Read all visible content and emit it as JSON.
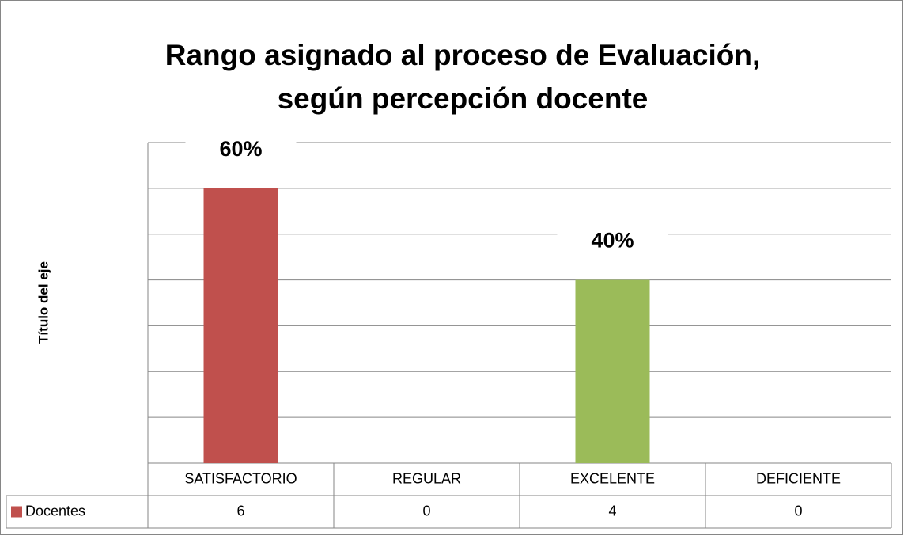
{
  "chart_data": {
    "type": "bar",
    "title": "Rango asignado al proceso de Evaluación,",
    "title_line2": "según percepción docente",
    "y_axis_label": "Título del eje",
    "categories": [
      "SATISFACTORIO",
      "REGULAR",
      "EXCELENTE",
      "DEFICIENTE"
    ],
    "series": [
      {
        "name": "Docentes",
        "color": "#c0504d",
        "values": [
          6,
          0,
          4,
          0
        ]
      }
    ],
    "bar_colors": [
      "#c0504d",
      "#c0504d",
      "#9bbb59",
      "#c0504d"
    ],
    "percent_labels": [
      "60%",
      null,
      "40%",
      null
    ],
    "ylim": [
      0,
      7
    ],
    "yticks": [
      0,
      1,
      2,
      3,
      4,
      5,
      6,
      7
    ],
    "grid": true
  }
}
